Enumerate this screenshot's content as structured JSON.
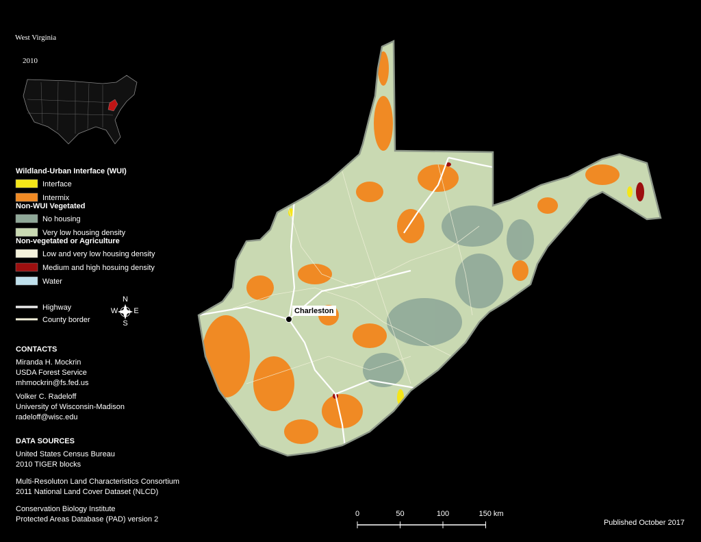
{
  "title": "West Virginia",
  "year": "2010",
  "legend": {
    "sections": [
      {
        "heading": "Wildland-Urban Interface (WUI)",
        "items": [
          {
            "label": "Interface",
            "color": "#f5e619"
          },
          {
            "label": "Intermix",
            "color": "#f08a24"
          }
        ]
      },
      {
        "heading": "Non-WUI Vegetated",
        "items": [
          {
            "label": "No housing",
            "color": "#8fa898"
          },
          {
            "label": "Very low housing density",
            "color": "#c9d9b2"
          }
        ]
      },
      {
        "heading": "Non-vegetated or Agriculture",
        "items": [
          {
            "label": "Low and very low housing density",
            "color": "#f4f2dc"
          },
          {
            "label": "Medium and high hosuing density",
            "color": "#9c0f0f"
          },
          {
            "label": "Water",
            "color": "#bfe0ec"
          }
        ]
      }
    ],
    "lines": [
      {
        "label": "Highway"
      },
      {
        "label": "County border"
      }
    ]
  },
  "compass": {
    "n": "N",
    "s": "S",
    "e": "E",
    "w": "W"
  },
  "city": "Charleston",
  "contacts": {
    "heading": "CONTACTS",
    "people": [
      [
        "Miranda H. Mockrin",
        "USDA Forest Service",
        "mhmockrin@fs.fed.us"
      ],
      [
        "Volker C. Radeloff",
        "University of Wisconsin-Madison",
        "radeloff@wisc.edu"
      ]
    ]
  },
  "data_sources": {
    "heading": "DATA SOURCES",
    "entries": [
      [
        "United States Census Bureau",
        "2010 TIGER blocks"
      ],
      [
        "Multi-Resoluton Land Characteristics Consortium",
        "2011 National Land Cover Dataset (NLCD)"
      ],
      [
        "Conservation Biology Institute",
        "Protected Areas Database (PAD) version 2"
      ]
    ]
  },
  "scale_bar": {
    "labels": [
      "0",
      "50",
      "100",
      "150 km"
    ]
  },
  "published": "Published October 2017"
}
